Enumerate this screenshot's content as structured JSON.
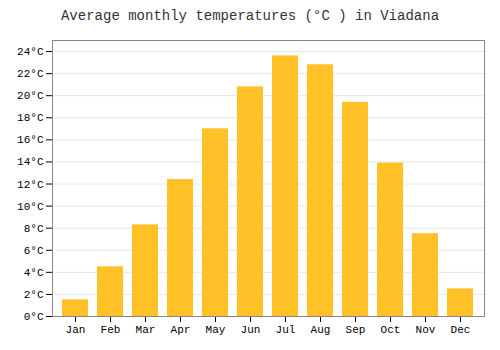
{
  "chart_data": {
    "type": "bar",
    "title": "Average monthly temperatures (°C ) in Viadana",
    "categories": [
      "Jan",
      "Feb",
      "Mar",
      "Apr",
      "May",
      "Jun",
      "Jul",
      "Aug",
      "Sep",
      "Oct",
      "Nov",
      "Dec"
    ],
    "values": [
      1.5,
      4.5,
      8.3,
      12.4,
      17.0,
      20.8,
      23.6,
      22.8,
      19.4,
      13.9,
      7.5,
      2.5
    ],
    "color": "#FFC125",
    "ylim": [
      0,
      25
    ],
    "yticks": [
      {
        "value": 0,
        "label": "0°C"
      },
      {
        "value": 2,
        "label": "2°C"
      },
      {
        "value": 4,
        "label": "4°C"
      },
      {
        "value": 6,
        "label": "6°C"
      },
      {
        "value": 8,
        "label": "8°C"
      },
      {
        "value": 10,
        "label": "10°C"
      },
      {
        "value": 12,
        "label": "12°C"
      },
      {
        "value": 14,
        "label": "14°C"
      },
      {
        "value": 16,
        "label": "16°C"
      },
      {
        "value": 18,
        "label": "18°C"
      },
      {
        "value": 20,
        "label": "20°C"
      },
      {
        "value": 22,
        "label": "22°C"
      },
      {
        "value": 24,
        "label": "24°C"
      }
    ],
    "grid": true
  }
}
